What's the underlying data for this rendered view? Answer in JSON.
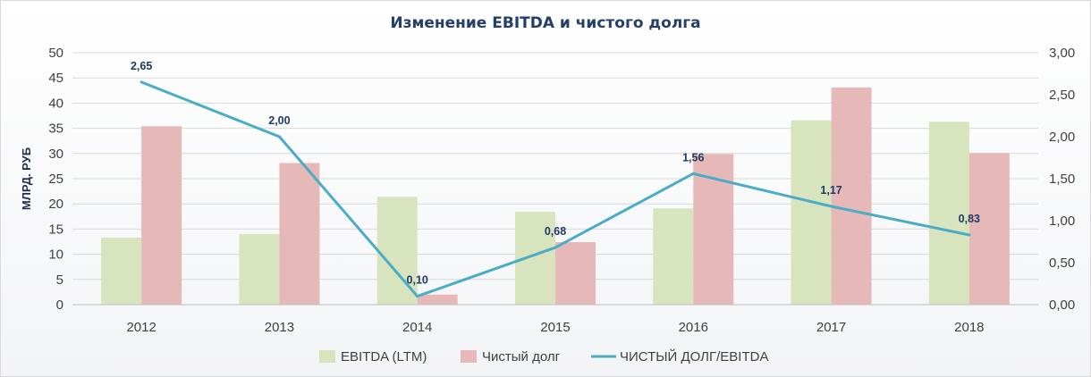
{
  "chart_data": {
    "type": "bar",
    "title": "Изменение EBITDA и чистого долга",
    "ylabel": "МЛРД. РУБ",
    "categories": [
      "2012",
      "2013",
      "2014",
      "2015",
      "2016",
      "2017",
      "2018"
    ],
    "ylim": [
      0,
      50
    ],
    "y_ticks": [
      "0",
      "5",
      "10",
      "15",
      "20",
      "25",
      "30",
      "35",
      "40",
      "45",
      "50"
    ],
    "y2lim": [
      0,
      3
    ],
    "y2_ticks": [
      "0,00",
      "0,50",
      "1,00",
      "1,50",
      "2,00",
      "2,50",
      "3,00"
    ],
    "series": [
      {
        "name": "EBITDA (LTM)",
        "type": "bar",
        "axis": "left",
        "color": "#d7e4bd",
        "values": [
          13.3,
          14.0,
          21.4,
          18.4,
          19.1,
          36.6,
          36.3
        ]
      },
      {
        "name": "Чистый долг",
        "type": "bar",
        "axis": "left",
        "color": "#e6b9b8",
        "values": [
          35.4,
          28.1,
          2.0,
          12.4,
          29.9,
          43.1,
          30.1
        ]
      },
      {
        "name": "ЧИСТЫЙ ДОЛГ/EBITDA",
        "type": "line",
        "axis": "right",
        "color": "#4bacc6",
        "values": [
          2.65,
          2.0,
          0.1,
          0.68,
          1.56,
          1.17,
          0.83
        ],
        "labels": [
          "2,65",
          "2,00",
          "0,10",
          "0,68",
          "1,56",
          "1,17",
          "0,83"
        ]
      }
    ],
    "grid": true,
    "legend": "bottom"
  }
}
